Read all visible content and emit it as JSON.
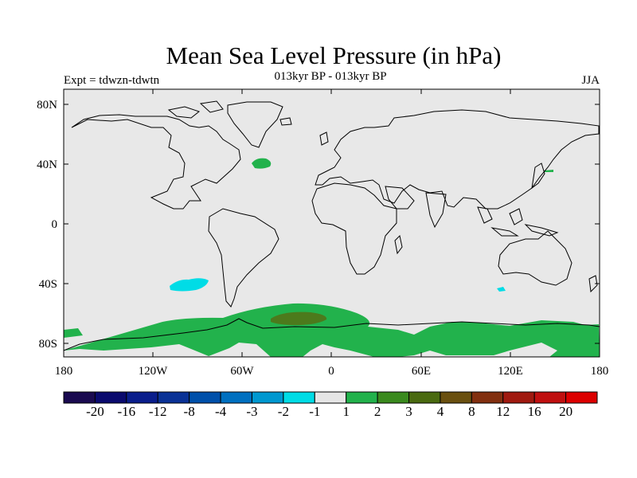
{
  "title": "Mean Sea Level Pressure (in hPa)",
  "subtitle": "013kyr BP - 013kyr BP",
  "experiment_label": "Expt = tdwzn-tdwtn",
  "season": "JJA",
  "map": {
    "background_color": "#e8e8e8",
    "coastline_color": "#000000",
    "lat_ticks": [
      "80N",
      "40N",
      "0",
      "40S",
      "80S"
    ],
    "lon_ticks": [
      "180",
      "120W",
      "60W",
      "0",
      "60E",
      "120E",
      "180"
    ],
    "anomaly_regions": [
      {
        "name": "north-atlantic-positive",
        "color": "#22b24c"
      },
      {
        "name": "south-pacific-negative",
        "color": "#00dce6"
      },
      {
        "name": "southern-ocean-positive",
        "color": "#22b24c"
      },
      {
        "name": "weddell-sea-strong-positive",
        "color": "#4c7a1c"
      },
      {
        "name": "indian-ocean-negative",
        "color": "#00dce6"
      }
    ]
  },
  "colorbar": {
    "colors": [
      "#1a0a50",
      "#0a0a6e",
      "#0a1e8c",
      "#0a3296",
      "#0050aa",
      "#0070c0",
      "#0098d0",
      "#00dce6",
      "#e6e6e6",
      "#22b24c",
      "#3a8a1e",
      "#4a6a10",
      "#6a5010",
      "#823010",
      "#a01a10",
      "#c01010",
      "#dc0000"
    ],
    "labels": [
      "-20",
      "-16",
      "-12",
      "-8",
      "-4",
      "-3",
      "-2",
      "-1",
      "1",
      "2",
      "3",
      "4",
      "8",
      "12",
      "16",
      "20"
    ]
  }
}
